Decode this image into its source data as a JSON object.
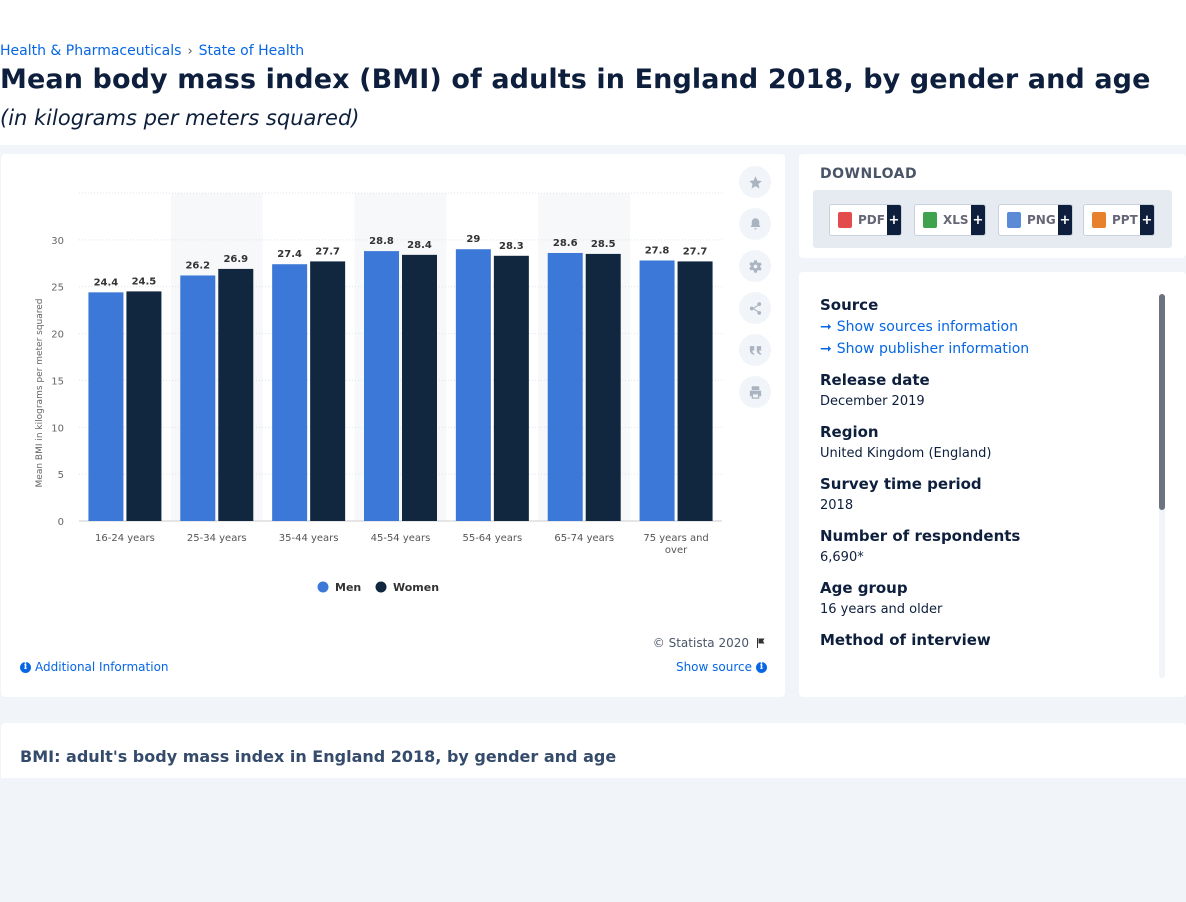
{
  "breadcrumb": {
    "items": [
      "Health & Pharmaceuticals",
      "State of Health"
    ],
    "separator": "›"
  },
  "page": {
    "title": "Mean body mass index (BMI) of adults in England 2018, by gender and age",
    "subtitle": "(in kilograms per meters squared)"
  },
  "chart_data": {
    "type": "bar",
    "categories": [
      "16-24 years",
      "25-34 years",
      "35-44 years",
      "45-54 years",
      "55-64 years",
      "65-74 years",
      "75 years and over"
    ],
    "series": [
      {
        "name": "Men",
        "values": [
          24.4,
          26.2,
          27.4,
          28.8,
          29,
          28.6,
          27.8
        ],
        "color": "#3c78d8"
      },
      {
        "name": "Women",
        "values": [
          24.5,
          26.9,
          27.7,
          28.4,
          28.3,
          28.5,
          27.7
        ],
        "color": "#11263f"
      }
    ],
    "value_labels": {
      "Men": [
        "24.4",
        "26.2",
        "27.4",
        "28.8",
        "29",
        "28.6",
        "27.8"
      ],
      "Women": [
        "24.5",
        "26.9",
        "27.7",
        "28.4",
        "28.3",
        "28.5",
        "27.7"
      ]
    },
    "ylabel": "Mean BMI in kilograms per meter squared",
    "yticks": [
      0,
      5,
      10,
      15,
      20,
      25,
      30
    ],
    "ylim": [
      0,
      35
    ],
    "grid": true,
    "legend_position": "bottom-center"
  },
  "chart_footer": {
    "copyright": "© Statista 2020",
    "additional_info": "Additional Information",
    "show_source": "Show source"
  },
  "toolbar": {
    "icons": [
      "star-icon",
      "bell-icon",
      "gear-icon",
      "share-icon",
      "quote-icon",
      "print-icon"
    ]
  },
  "download": {
    "title": "DOWNLOAD",
    "buttons": [
      {
        "label": "PDF",
        "icon_color": "#e34c4c"
      },
      {
        "label": "XLS",
        "icon_color": "#3fa34d"
      },
      {
        "label": "PNG",
        "icon_color": "#5b8bd6"
      },
      {
        "label": "PPT",
        "icon_color": "#e8812c"
      }
    ],
    "plus": "+"
  },
  "info": {
    "source_label": "Source",
    "show_sources": "Show sources information",
    "show_publisher": "Show publisher information",
    "release_date_label": "Release date",
    "release_date": "December 2019",
    "region_label": "Region",
    "region": "United Kingdom (England)",
    "survey_period_label": "Survey time period",
    "survey_period": "2018",
    "respondents_label": "Number of respondents",
    "respondents": "6,690*",
    "age_group_label": "Age group",
    "age_group": "16 years and older",
    "method_label": "Method of interview"
  },
  "related": {
    "title": "BMI: adult's body mass index in England 2018, by gender and age"
  }
}
